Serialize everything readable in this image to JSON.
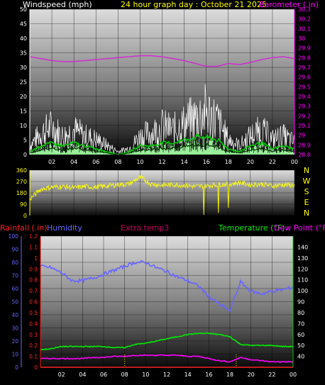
{
  "panel1": {
    "title_left": "Windspeed (mph)",
    "title_center": "24 hour graph day : October 21 2025",
    "title_right": "Barometer (.in)",
    "colors": {
      "title_left": "#ffffff",
      "title_center": "#ffff00",
      "title_right": "#ff00ff",
      "wind": "#ffffff",
      "gust_avg": "#00cc00",
      "dark_avg": "#003300",
      "light": "#99ee99",
      "baro": "#cc33cc"
    }
  },
  "panel2": {
    "compass_labels": [
      "N",
      "W",
      "S",
      "E",
      "N"
    ],
    "colors": {
      "tick": "#ffff00",
      "line": "#ffff00",
      "compass": "#ffff00"
    }
  },
  "panel3": {
    "label_rain": "Rainfall (.in)",
    "label_humidity": "Humidity",
    "label_extra": "Extra temp3",
    "label_temp": "Temperature (°F)",
    "label_dew": "Dew Point (°F)",
    "colors": {
      "rain": "#ff2222",
      "humidity": "#6666ff",
      "extra": "#cc0066",
      "temp": "#00ee00",
      "dew": "#ff00ff",
      "red_tick": "#ee1111",
      "green_tick": "#00cc00"
    }
  },
  "chart_data": [
    {
      "type": "line",
      "title": "24 hour graph day : October 21 2025",
      "ylabel": "Windspeed (mph)",
      "y2label": "Barometer (.in)",
      "x_ticks": [
        "02",
        "04",
        "06",
        "08",
        "10",
        "12",
        "14",
        "16",
        "18",
        "20",
        "22",
        "00"
      ],
      "ylim": [
        0,
        50
      ],
      "y_ticks": [
        0,
        5,
        10,
        15,
        20,
        25,
        30,
        35,
        40,
        45,
        50
      ],
      "y2lim": [
        28.8,
        30.3
      ],
      "y2_ticks": [
        "28.8",
        "28.9",
        "29",
        "29.1",
        "29.2",
        "29.3",
        "29.4",
        "29.5",
        "29.6",
        "29.7",
        "29.8",
        "29.9",
        "30",
        "30.1",
        "30.2",
        "30.3"
      ],
      "x_hours": [
        0,
        1,
        2,
        3,
        4,
        5,
        6,
        7,
        8,
        9,
        10,
        11,
        12,
        13,
        14,
        15,
        16,
        17,
        18,
        19,
        20,
        21,
        22,
        23,
        24
      ],
      "series": [
        {
          "name": "Barometer",
          "values": [
            29.81,
            29.79,
            29.77,
            29.76,
            29.76,
            29.77,
            29.78,
            29.79,
            29.8,
            29.81,
            29.82,
            29.82,
            29.81,
            29.79,
            29.77,
            29.74,
            29.71,
            29.71,
            29.74,
            29.73,
            29.75,
            29.78,
            29.8,
            29.81,
            29.79
          ]
        },
        {
          "name": "Wind speed",
          "values": [
            3,
            7,
            9,
            6,
            8,
            6,
            5,
            3,
            1,
            2,
            6,
            7,
            9,
            8,
            10,
            12,
            14,
            11,
            5,
            3,
            6,
            8,
            5,
            6,
            4
          ]
        },
        {
          "name": "Average wind",
          "values": [
            1,
            3,
            4,
            3,
            4,
            3,
            2,
            1,
            0,
            1,
            3,
            3,
            4,
            4,
            5,
            6,
            6,
            5,
            2,
            1,
            3,
            4,
            2,
            3,
            2
          ]
        }
      ]
    },
    {
      "type": "line",
      "ylabel": "Wind direction",
      "ylim": [
        0,
        360
      ],
      "y_ticks": [
        0,
        90,
        180,
        270,
        360
      ],
      "x_hours": [
        0,
        1,
        2,
        3,
        4,
        5,
        6,
        7,
        8,
        9,
        10,
        11,
        12,
        13,
        14,
        15,
        16,
        17,
        18,
        19,
        20,
        21,
        22,
        23,
        24
      ],
      "series": [
        {
          "name": "Wind direction",
          "values": [
            130,
            210,
            225,
            230,
            220,
            230,
            225,
            235,
            245,
            250,
            305,
            250,
            240,
            245,
            240,
            230,
            235,
            245,
            250,
            260,
            245,
            250,
            235,
            245,
            240
          ]
        }
      ]
    },
    {
      "type": "line",
      "x_ticks": [
        "02",
        "04",
        "06",
        "08",
        "10",
        "12",
        "14",
        "16",
        "18",
        "20",
        "22",
        "00"
      ],
      "ylim": [
        0,
        100
      ],
      "y_ticks": [
        0,
        10,
        20,
        30,
        40,
        50,
        60,
        70,
        80,
        90,
        100
      ],
      "y_rain_ticks": [
        "0",
        "0.1",
        "0.2",
        "0.3",
        "0.4",
        "0.5",
        "0.6",
        "0.7",
        "0.8",
        "0.9",
        "1",
        "1.1",
        "1.2"
      ],
      "y2lim": [
        30,
        150
      ],
      "y2_ticks": [
        40,
        50,
        60,
        70,
        80,
        90,
        100,
        110,
        120,
        130,
        140
      ],
      "x_hours": [
        0,
        1,
        2,
        3,
        4,
        5,
        6,
        7,
        8,
        9,
        10,
        11,
        12,
        13,
        14,
        15,
        16,
        17,
        18,
        19,
        20,
        21,
        22,
        23,
        24
      ],
      "series": [
        {
          "name": "Humidity",
          "values": [
            77,
            76,
            72,
            66,
            66,
            68,
            71,
            74,
            77,
            80,
            80,
            76,
            73,
            69,
            66,
            62,
            54,
            48,
            43,
            65,
            58,
            56,
            58,
            59,
            61
          ]
        },
        {
          "name": "Temperature",
          "values": [
            46,
            47,
            49,
            49,
            49,
            49,
            49,
            48,
            48,
            51,
            52,
            54,
            56,
            58,
            60,
            61,
            61,
            60,
            58,
            51,
            50,
            50,
            50,
            49,
            49
          ]
        },
        {
          "name": "Dew Point",
          "values": [
            38,
            38,
            38,
            38,
            38,
            39,
            39,
            40,
            40,
            41,
            41,
            41,
            41,
            41,
            40,
            40,
            38,
            36,
            35,
            39,
            37,
            36,
            35,
            35,
            35
          ]
        },
        {
          "name": "Extra temp3",
          "values": [
            0,
            0,
            0,
            0,
            0,
            0,
            0,
            0,
            0,
            0,
            0,
            0,
            0,
            0,
            0,
            0,
            0,
            0,
            0,
            0,
            0,
            0,
            0,
            0,
            0
          ]
        },
        {
          "name": "Rainfall",
          "values": [
            0,
            0,
            0,
            0,
            0,
            0,
            0,
            0,
            0,
            0,
            0,
            0,
            0,
            0,
            0,
            0,
            0,
            0,
            0,
            0,
            0,
            0,
            0,
            0,
            0
          ]
        }
      ]
    }
  ]
}
